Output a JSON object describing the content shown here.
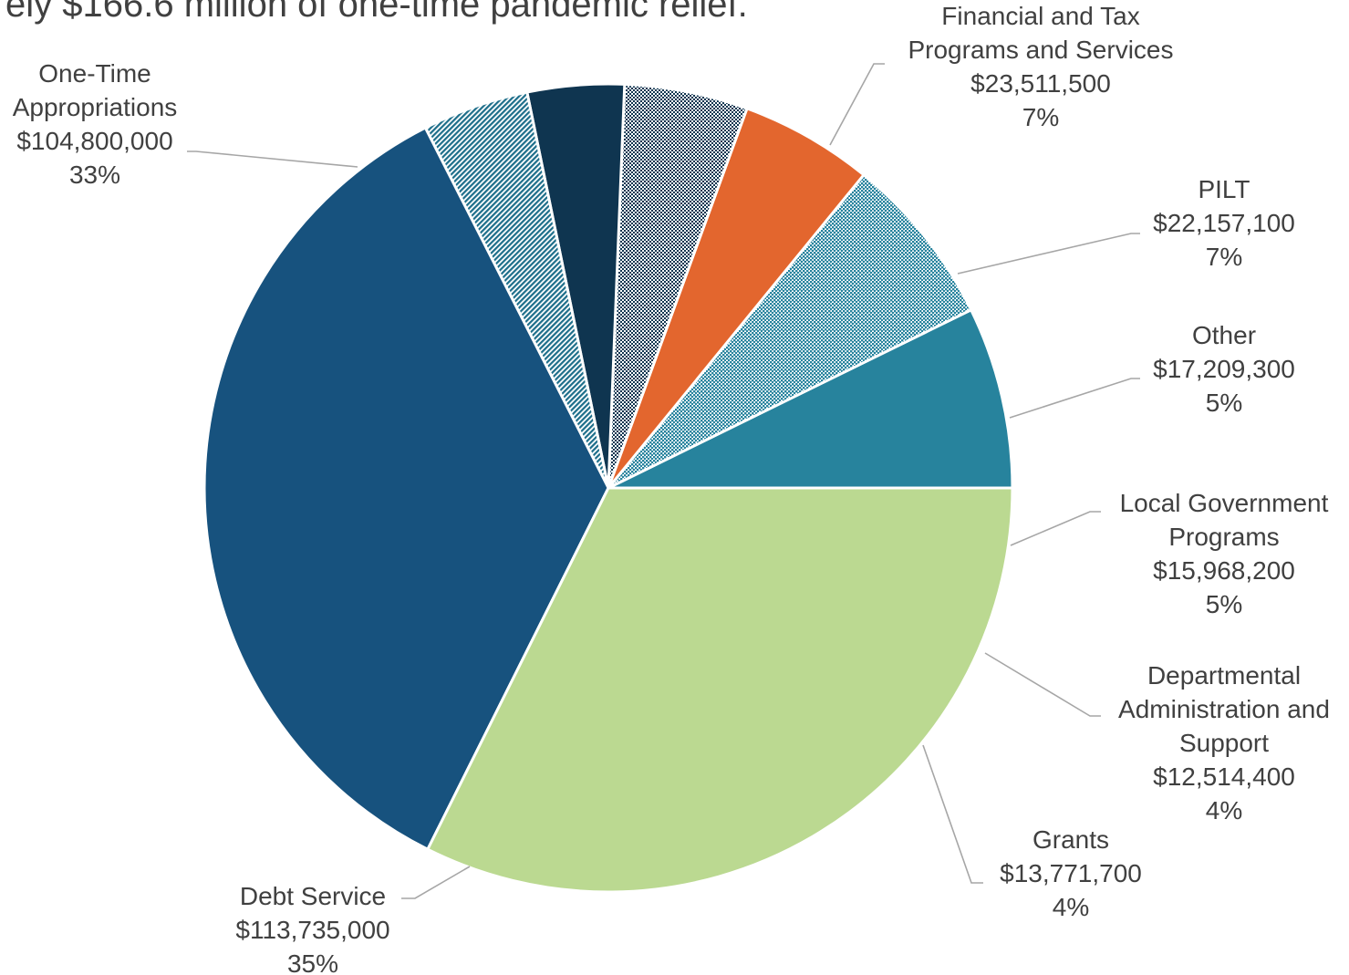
{
  "title": "ely $166.6 million of one-time pandemic relief.",
  "chart_data": {
    "type": "pie",
    "slices": [
      {
        "name": "Financial and Tax Programs and Services",
        "label_lines": [
          "Financial and Tax",
          "Programs and Services"
        ],
        "amount": "$23,511,500",
        "percent": "7%",
        "value": 23511500,
        "color": "#27839d",
        "fill": "solid"
      },
      {
        "name": "PILT",
        "label_lines": [
          "PILT"
        ],
        "amount": "$22,157,100",
        "percent": "7%",
        "value": 22157100,
        "color": "#27839d",
        "fill": "dots"
      },
      {
        "name": "Other",
        "label_lines": [
          "Other"
        ],
        "amount": "$17,209,300",
        "percent": "5%",
        "value": 17209300,
        "color": "#e3662e",
        "fill": "solid"
      },
      {
        "name": "Local Government Programs",
        "label_lines": [
          "Local Government",
          "Programs"
        ],
        "amount": "$15,968,200",
        "percent": "5%",
        "value": 15968200,
        "color": "#0f3550",
        "fill": "checker"
      },
      {
        "name": "Departmental Administration and Support",
        "label_lines": [
          "Departmental",
          "Administration and",
          "Support"
        ],
        "amount": "$12,514,400",
        "percent": "4%",
        "value": 12514400,
        "color": "#0f3550",
        "fill": "solid"
      },
      {
        "name": "Grants",
        "label_lines": [
          "Grants"
        ],
        "amount": "$13,771,700",
        "percent": "4%",
        "value": 13771700,
        "color": "#1d6e8a",
        "fill": "stripes"
      },
      {
        "name": "Debt Service",
        "label_lines": [
          "Debt Service"
        ],
        "amount": "$113,735,000",
        "percent": "35%",
        "value": 113735000,
        "color": "#17527e",
        "fill": "solid"
      },
      {
        "name": "One-Time Appropriations",
        "label_lines": [
          "One-Time",
          "Appropriations"
        ],
        "amount": "$104,800,000",
        "percent": "33%",
        "value": 104800000,
        "color": "#bbd991",
        "fill": "solid"
      }
    ]
  }
}
